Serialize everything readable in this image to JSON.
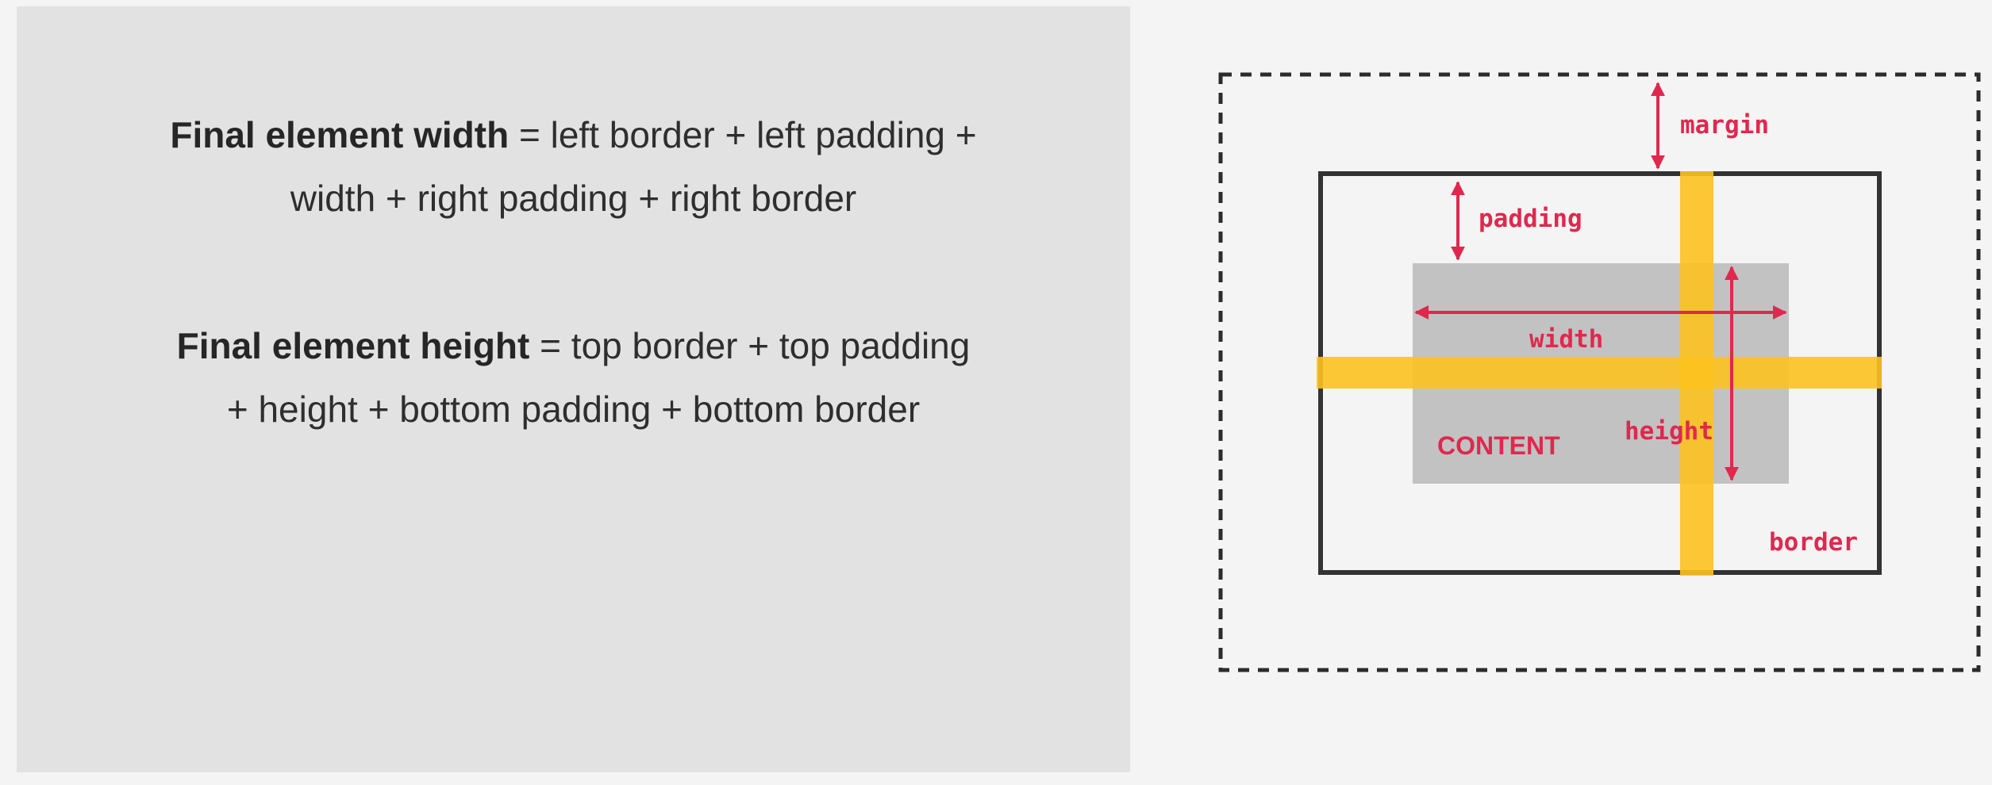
{
  "formulas": {
    "width": {
      "term": "Final element width",
      "line1_rest": " = left border + left padding +",
      "line2": "width + right padding + right border"
    },
    "height": {
      "term": "Final element height",
      "line1_rest": " = top border + top padding",
      "line2": "+ height + bottom padding + bottom border"
    }
  },
  "diagram": {
    "labels": {
      "margin": "margin",
      "padding": "padding",
      "width": "width",
      "height": "height",
      "content": "CONTENT",
      "border": "border"
    },
    "colors": {
      "accent": "#e0284e",
      "highlight": "#fcc21f",
      "border": "#333333",
      "content_fill": "#c2c2c2",
      "margin_outline": "#2b2b2b"
    }
  }
}
